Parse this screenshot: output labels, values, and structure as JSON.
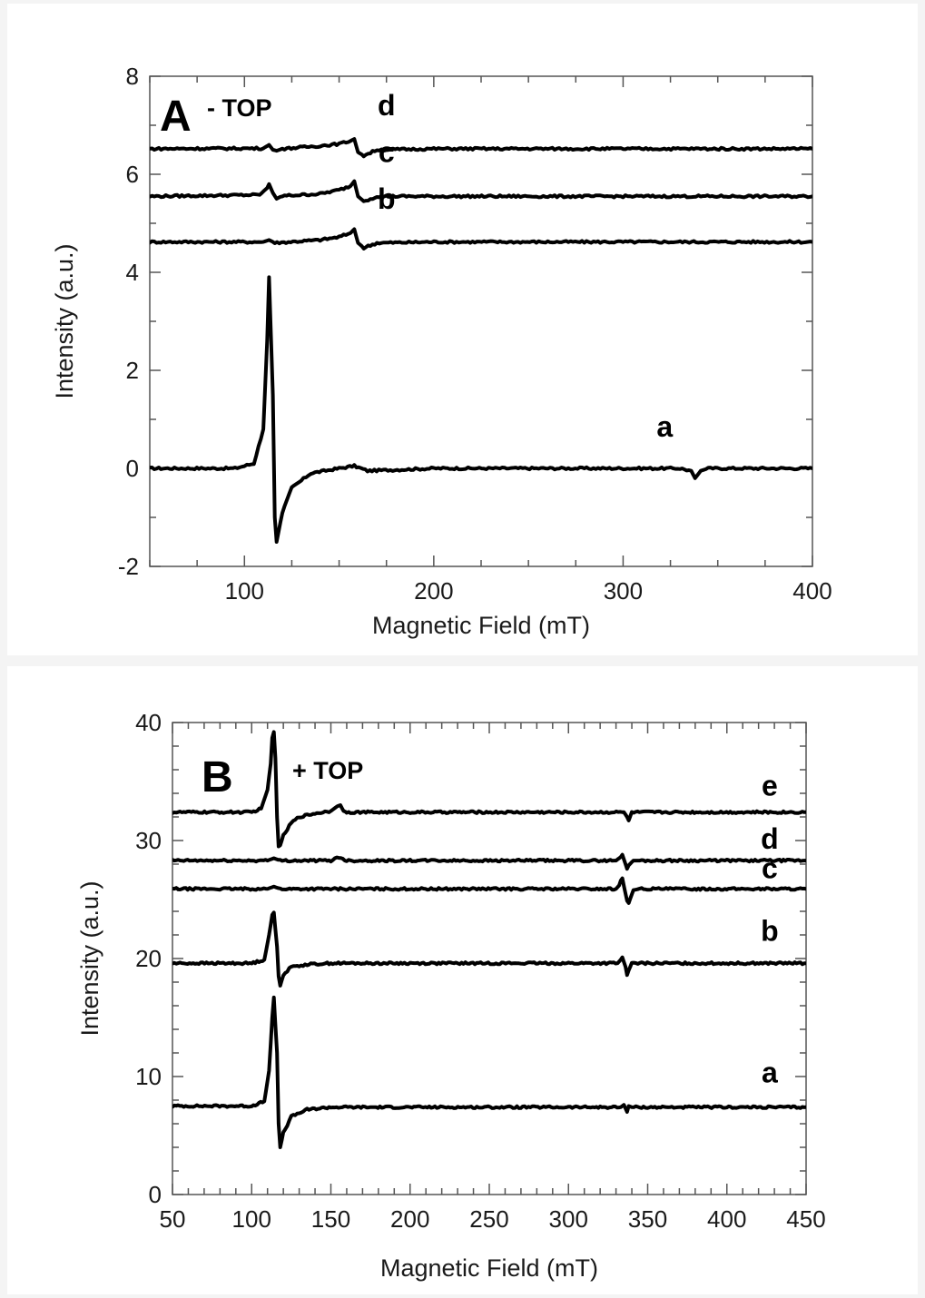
{
  "chart_data": [
    {
      "type": "line",
      "panel_letter": "A",
      "panel_tag": "- TOP",
      "xlabel": "Magnetic Field (mT)",
      "ylabel": "Intensity (a.u.)",
      "xlim": [
        50,
        400
      ],
      "ylim": [
        -2,
        8
      ],
      "x_ticks": [
        100,
        200,
        300,
        400
      ],
      "y_ticks": [
        -2,
        0,
        2,
        4,
        6,
        8
      ],
      "x_tick_labels": [
        "100",
        "200",
        "300",
        "400"
      ],
      "y_tick_labels": [
        "-2",
        "0",
        "2",
        "4",
        "6",
        "8"
      ],
      "grid": false,
      "series": [
        {
          "name": "a",
          "label_x": 322,
          "label_y": 0.65,
          "baseline": 0.0,
          "x": [
            50,
            95,
            105,
            110,
            112,
            113,
            115,
            116,
            117,
            120,
            125,
            135,
            150,
            158,
            165,
            200,
            300,
            330,
            336,
            338,
            341,
            345,
            400
          ],
          "y": [
            0,
            0,
            0.1,
            0.8,
            2.6,
            3.9,
            1.5,
            -1.0,
            -1.5,
            -0.9,
            -0.4,
            -0.1,
            0.0,
            0.05,
            -0.05,
            0,
            0,
            0,
            -0.05,
            -0.2,
            -0.05,
            0,
            0
          ]
        },
        {
          "name": "b",
          "label_x": 175,
          "label_y": 5.3,
          "baseline": 4.62,
          "x": [
            50,
            110,
            113,
            116,
            140,
            150,
            156,
            158,
            160,
            163,
            170,
            200,
            300,
            400
          ],
          "y": [
            4.62,
            4.62,
            4.66,
            4.6,
            4.66,
            4.72,
            4.8,
            4.88,
            4.6,
            4.5,
            4.6,
            4.62,
            4.62,
            4.62
          ]
        },
        {
          "name": "c",
          "label_x": 175,
          "label_y": 6.25,
          "baseline": 5.55,
          "x": [
            50,
            108,
            112,
            113,
            115,
            117,
            120,
            140,
            150,
            156,
            158,
            160,
            163,
            170,
            200,
            300,
            400
          ],
          "y": [
            5.55,
            5.58,
            5.72,
            5.8,
            5.62,
            5.5,
            5.56,
            5.6,
            5.68,
            5.76,
            5.86,
            5.55,
            5.45,
            5.55,
            5.55,
            5.55,
            5.55
          ]
        },
        {
          "name": "d",
          "label_x": 175,
          "label_y": 7.2,
          "baseline": 6.52,
          "x": [
            50,
            110,
            113,
            115,
            117,
            120,
            140,
            150,
            156,
            158,
            160,
            163,
            170,
            200,
            300,
            400
          ],
          "y": [
            6.52,
            6.53,
            6.6,
            6.5,
            6.48,
            6.52,
            6.58,
            6.62,
            6.68,
            6.72,
            6.45,
            6.38,
            6.5,
            6.52,
            6.52,
            6.52
          ]
        }
      ]
    },
    {
      "type": "line",
      "panel_letter": "B",
      "panel_tag": "+ TOP",
      "xlabel": "Magnetic Field (mT)",
      "ylabel": "Intensity (a.u.)",
      "xlim": [
        50,
        450
      ],
      "ylim": [
        0,
        40
      ],
      "x_ticks": [
        50,
        100,
        150,
        200,
        250,
        300,
        350,
        400,
        450
      ],
      "y_ticks": [
        0,
        10,
        20,
        30,
        40
      ],
      "x_tick_labels": [
        "50",
        "100",
        "150",
        "200",
        "250",
        "300",
        "350",
        "400",
        "450"
      ],
      "y_tick_labels": [
        "0",
        "10",
        "20",
        "30",
        "40"
      ],
      "grid": false,
      "series": [
        {
          "name": "a",
          "label_x": 427,
          "label_y": 9.5,
          "baseline": 7.5,
          "x": [
            50,
            100,
            108,
            111,
            113,
            114,
            116,
            117,
            118,
            120,
            125,
            135,
            150,
            200,
            300,
            333,
            335,
            336,
            337,
            338,
            340,
            345,
            450
          ],
          "y": [
            7.5,
            7.5,
            7.9,
            10.5,
            15.0,
            16.7,
            12.0,
            6.0,
            4.0,
            5.2,
            6.6,
            7.2,
            7.4,
            7.4,
            7.4,
            7.4,
            7.6,
            7.3,
            7.0,
            7.5,
            7.4,
            7.4,
            7.4
          ]
        },
        {
          "name": "b",
          "label_x": 427,
          "label_y": 21.5,
          "baseline": 19.6,
          "x": [
            50,
            100,
            108,
            111,
            113,
            114,
            116,
            117,
            118,
            120,
            125,
            135,
            150,
            200,
            300,
            331,
            333,
            334,
            336,
            337,
            338,
            340,
            345,
            450
          ],
          "y": [
            19.6,
            19.6,
            19.9,
            22.0,
            23.7,
            23.9,
            21.0,
            18.5,
            17.7,
            18.6,
            19.3,
            19.5,
            19.6,
            19.6,
            19.6,
            19.6,
            19.9,
            20.1,
            19.3,
            18.6,
            19.0,
            19.6,
            19.6,
            19.6
          ]
        },
        {
          "name": "c",
          "label_x": 427,
          "label_y": 26.8,
          "baseline": 25.9,
          "x": [
            50,
            110,
            114,
            118,
            150,
            200,
            300,
            330,
            332,
            333,
            334,
            336,
            337,
            338,
            341,
            345,
            450
          ],
          "y": [
            25.9,
            25.9,
            26.1,
            25.9,
            25.9,
            25.9,
            25.9,
            25.9,
            26.2,
            26.6,
            26.8,
            25.5,
            24.9,
            24.7,
            25.8,
            25.9,
            25.9
          ]
        },
        {
          "name": "d",
          "label_x": 427,
          "label_y": 29.3,
          "baseline": 28.3,
          "x": [
            50,
            110,
            114,
            118,
            150,
            155,
            160,
            200,
            300,
            330,
            333,
            334,
            336,
            337,
            338,
            341,
            345,
            450
          ],
          "y": [
            28.3,
            28.3,
            28.5,
            28.3,
            28.3,
            28.6,
            28.3,
            28.3,
            28.3,
            28.3,
            28.6,
            28.8,
            28.0,
            27.6,
            27.9,
            28.3,
            28.3,
            28.3
          ]
        },
        {
          "name": "e",
          "label_x": 427,
          "label_y": 33.8,
          "baseline": 32.4,
          "x": [
            50,
            100,
            106,
            110,
            112,
            113,
            114,
            115,
            116,
            117,
            118,
            120,
            125,
            130,
            140,
            150,
            154,
            156,
            158,
            160,
            200,
            300,
            335,
            337,
            338,
            340,
            450
          ],
          "y": [
            32.4,
            32.4,
            32.7,
            34.3,
            36.5,
            38.7,
            39.2,
            37.0,
            32.0,
            29.5,
            29.6,
            30.4,
            31.5,
            32.0,
            32.3,
            32.5,
            32.9,
            33.0,
            32.5,
            32.4,
            32.4,
            32.4,
            32.4,
            32.0,
            31.7,
            32.4,
            32.4
          ]
        }
      ]
    }
  ]
}
